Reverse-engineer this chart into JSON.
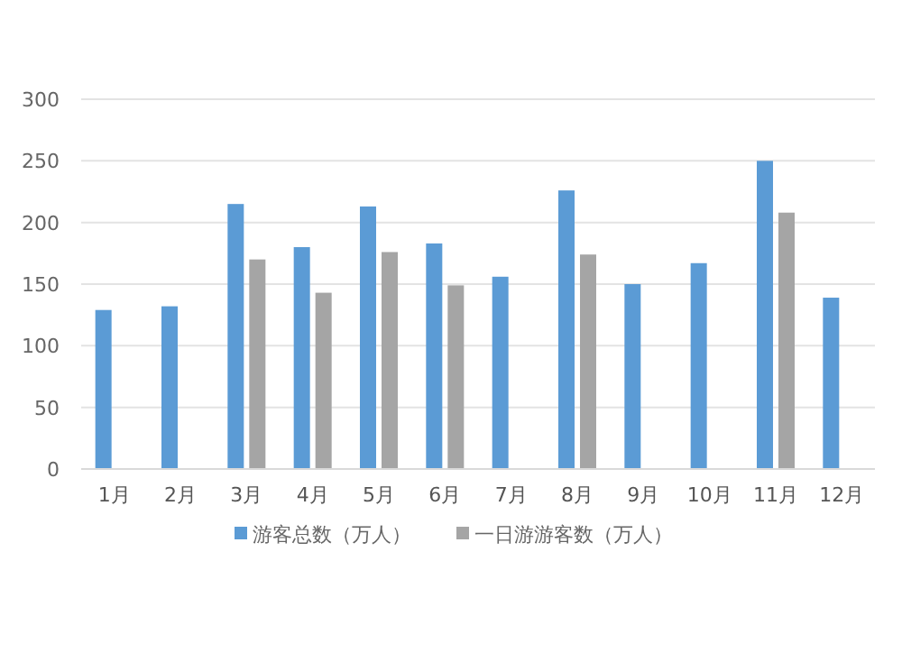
{
  "chart_data": {
    "type": "bar",
    "categories": [
      "1月",
      "2月",
      "3月",
      "4月",
      "5月",
      "6月",
      "7月",
      "8月",
      "9月",
      "10月",
      "11月",
      "12月"
    ],
    "series": [
      {
        "name": "游客总数（万人）",
        "color": "#5b9bd5",
        "values": [
          129,
          132,
          215,
          180,
          213,
          183,
          156,
          226,
          150,
          167,
          250,
          139
        ]
      },
      {
        "name": "一日游游客数（万人）",
        "color": "#a5a5a5",
        "values": [
          null,
          null,
          170,
          143,
          176,
          149,
          null,
          174,
          null,
          null,
          208,
          null
        ]
      }
    ],
    "ylim": [
      0,
      300
    ],
    "yticks": [
      0,
      50,
      100,
      150,
      200,
      250,
      300
    ],
    "grid": "y",
    "legend": "bottom"
  }
}
